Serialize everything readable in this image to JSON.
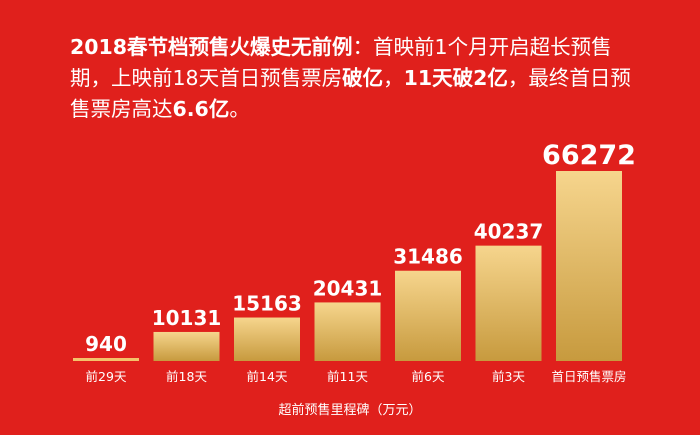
{
  "headline": {
    "lead": "2018春节档预售火爆史无前例",
    "p1": "：首映前1个月开启超长预售期，上映前18天首日预售票房",
    "b1": "破亿",
    "p2": "，",
    "b2": "11天破2亿",
    "p3": "，最终首日预售票房高达",
    "b3": "6.6亿",
    "p4": "。"
  },
  "colors": {
    "background": "#e0201c",
    "bar_top": "#f6d58d",
    "bar_bottom": "#c79a3e",
    "baseline": "#f4c26a"
  },
  "chart_data": {
    "type": "bar",
    "title": "",
    "categories": [
      "前29天",
      "前18天",
      "前14天",
      "前11天",
      "前6天",
      "前3天",
      "首日预售票房"
    ],
    "values": [
      940,
      10131,
      15163,
      20431,
      31486,
      40237,
      66272
    ],
    "xlabel": "超前预售里程碑（万元）",
    "ylabel": "",
    "ylim": [
      0,
      66272
    ],
    "grid": false,
    "legend": "none"
  }
}
